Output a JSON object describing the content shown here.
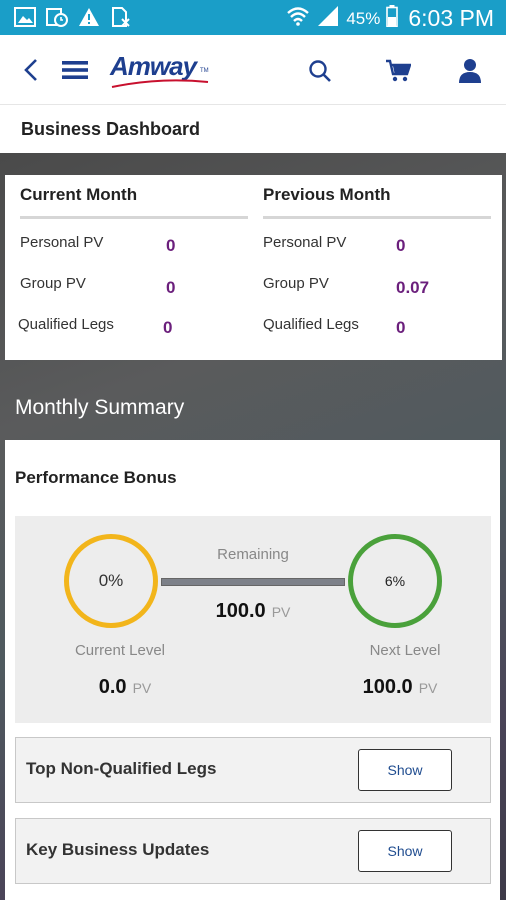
{
  "status_bar": {
    "battery": "45%",
    "time": "6:03 PM",
    "icons": [
      "image-icon",
      "schedule-icon",
      "alert-icon",
      "no-sim-icon",
      "wifi-icon",
      "signal-icon",
      "battery-icon"
    ]
  },
  "header": {
    "brand": "Amway",
    "trademark": "TM",
    "icons": [
      "back-icon",
      "menu-icon",
      "search-icon",
      "cart-icon",
      "profile-icon"
    ],
    "accent_color": "#1e3f8f"
  },
  "page_title": "Business Dashboard",
  "current_month": {
    "heading": "Current Month",
    "rows": [
      {
        "label": "Personal PV",
        "value": "0"
      },
      {
        "label": "Group PV",
        "value": "0"
      },
      {
        "label": "Qualified Legs",
        "value": "0"
      }
    ]
  },
  "previous_month": {
    "heading": "Previous Month",
    "rows": [
      {
        "label": "Personal PV",
        "value": "0"
      },
      {
        "label": "Group PV",
        "value": "0.07"
      },
      {
        "label": "Qualified Legs",
        "value": "0"
      }
    ]
  },
  "monthly_summary": {
    "title": "Monthly Summary",
    "performance_bonus": {
      "title": "Performance Bonus",
      "current_percent": "0%",
      "next_percent": "6%",
      "remaining_label": "Remaining",
      "remaining_value": "100.0",
      "current_level_label": "Current Level",
      "current_level_value": "0.0",
      "next_level_label": "Next Level",
      "next_level_value": "100.0",
      "unit": "PV",
      "current_ring_color": "#f2b51b",
      "next_ring_color": "#4aa13b"
    },
    "sections": [
      {
        "title": "Top Non-Qualified Legs",
        "button": "Show"
      },
      {
        "title": "Key Business Updates",
        "button": "Show"
      }
    ]
  },
  "colors": {
    "status_bar": "#1a9ec8",
    "value_purple": "#6b1f7c"
  }
}
